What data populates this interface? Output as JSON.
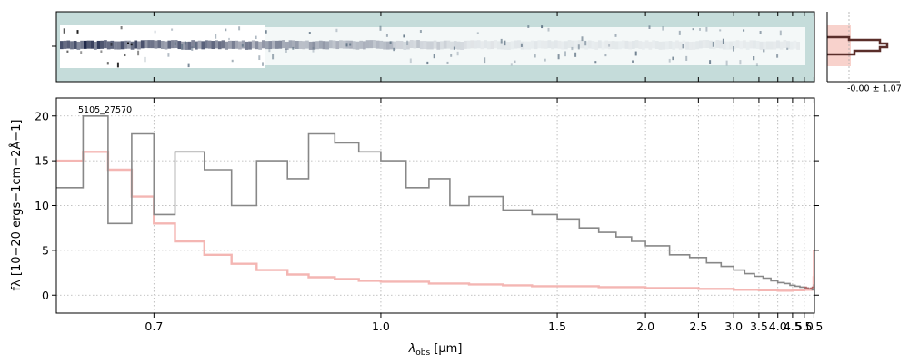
{
  "chart_data": {
    "type": "line",
    "object_label": "5105_27570",
    "xlabel": "λobs [μm]",
    "xlabel_main": "λ",
    "xlabel_sub": "obs",
    "xlabel_unit": " [μm]",
    "ylabel": "fλ [10−20 ergs−1cm−2Å−1]",
    "xscale": "reciprocal",
    "xlim": [
      0.62,
      5.53
    ],
    "ylim": [
      -2,
      22
    ],
    "grid": true,
    "x_ticks": [
      "0.7",
      "1.0",
      "1.5",
      "2.0",
      "2.5",
      "3.0",
      "3.5",
      "4.0",
      "4.5",
      "5.0",
      "5.5"
    ],
    "y_ticks": [
      "0",
      "5",
      "10",
      "15",
      "20"
    ],
    "colors": {
      "flux": "#888888",
      "error": "#f4b6b3",
      "model": "#b06868",
      "spec2d_bg": "#c5dcda",
      "hist_line": "#5a2e2a",
      "hist_fill": "#f8d2cc"
    },
    "series": [
      {
        "role": "flux",
        "x": [
          0.62,
          0.64,
          0.66,
          0.68,
          0.7,
          0.72,
          0.75,
          0.78,
          0.81,
          0.85,
          0.88,
          0.92,
          0.96,
          1.0,
          1.05,
          1.1,
          1.15,
          1.2,
          1.3,
          1.4,
          1.5,
          1.6,
          1.7,
          1.8,
          1.9,
          2.0,
          2.2,
          2.4,
          2.6,
          2.8,
          3.0,
          3.2,
          3.4,
          3.6,
          3.8,
          4.0,
          4.2,
          4.4,
          4.6,
          4.8,
          5.0,
          5.2,
          5.4,
          5.5
        ],
        "y": [
          12,
          20,
          8,
          18,
          9,
          16,
          14,
          10,
          15,
          13,
          18,
          17,
          16,
          15,
          12,
          13,
          10,
          11,
          9.5,
          9,
          8.5,
          7.5,
          7,
          6.5,
          6,
          5.5,
          4.5,
          4.2,
          3.6,
          3.2,
          2.8,
          2.4,
          2.1,
          1.9,
          1.6,
          1.4,
          1.3,
          1.1,
          1.0,
          0.9,
          0.8,
          0.7,
          0.6,
          1.2
        ]
      },
      {
        "role": "error",
        "x": [
          0.62,
          0.64,
          0.66,
          0.68,
          0.7,
          0.72,
          0.75,
          0.78,
          0.81,
          0.85,
          0.88,
          0.92,
          0.96,
          1.0,
          1.1,
          1.2,
          1.3,
          1.4,
          1.5,
          1.7,
          2.0,
          2.5,
          3.0,
          3.5,
          4.0,
          4.5,
          5.0,
          5.2,
          5.4,
          5.48,
          5.5
        ],
        "y": [
          15,
          16,
          14,
          11,
          8,
          6,
          4.5,
          3.5,
          2.8,
          2.3,
          2.0,
          1.8,
          1.6,
          1.5,
          1.3,
          1.2,
          1.1,
          1.0,
          1.0,
          0.9,
          0.8,
          0.7,
          0.6,
          0.55,
          0.5,
          0.55,
          0.6,
          0.6,
          0.7,
          2.0,
          5.0
        ]
      },
      {
        "role": "model",
        "x": [
          5.0,
          5.1,
          5.2,
          5.3,
          5.4,
          5.5
        ],
        "y": [
          0.9,
          0.8,
          0.7,
          0.8,
          0.9,
          0.8
        ]
      }
    ],
    "histogram_label": "-0.00 ± 1.07"
  }
}
